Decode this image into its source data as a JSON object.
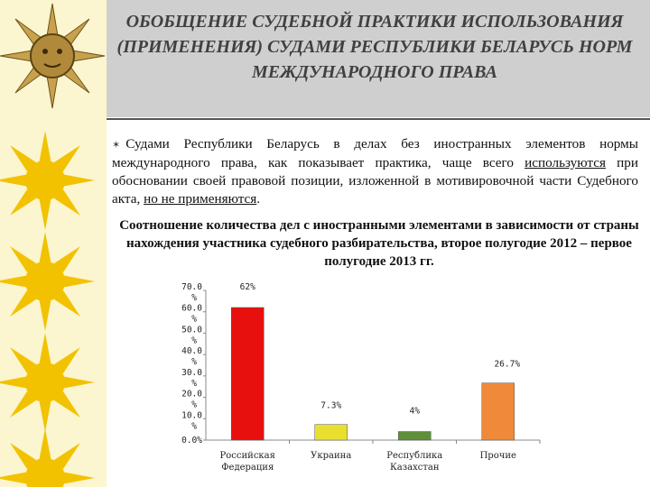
{
  "slide": {
    "title": "ОБОБЩЕНИЕ СУДЕБНОЙ ПРАКТИКИ ИСПОЛЬЗОВАНИЯ (ПРИМЕНЕНИЯ) СУДАМИ РЕСПУБЛИКИ БЕЛАРУСЬ НОРМ МЕЖДУНАРОДНОГО ПРАВА",
    "bullet": {
      "part1": "Судами Республики Беларусь в делах без иностранных элементов нормы международного права, как показывает практика, чаще всего ",
      "part2_u": "используются",
      "part3": " при обосновании своей правовой позиции, изложенной в мотивировочной части Судебного акта, ",
      "part4_u": "но не применяются",
      "part5": "."
    },
    "chart_heading": "Соотношение количества дел с иностранными элементами в зависимости от страны нахождения участника судебного разбирательства, второе полугодие 2012 – первое полугодие 2013 гг.",
    "colors": {
      "left_strip": "#fbf6cf",
      "title_band": "#cfcfcf",
      "sun": "#f2c200"
    }
  },
  "chart_data": {
    "type": "bar",
    "categories": [
      "Российская Федерация",
      "Украина",
      "Республика Казахстан",
      "Прочие"
    ],
    "values": [
      62.0,
      7.3,
      4.0,
      26.7
    ],
    "data_labels": [
      "62%",
      "7.3%",
      "4%",
      "26.7%"
    ],
    "bar_colors": [
      "#e8100e",
      "#e9df2f",
      "#5f8f3a",
      "#f08a3a"
    ],
    "ylim": [
      0,
      70
    ],
    "yticks": [
      0,
      10,
      20,
      30,
      40,
      50,
      60,
      70
    ],
    "ytick_labels": [
      "0.0%",
      "10.0%",
      "20.0%",
      "30.0%",
      "40.0%",
      "50.0%",
      "60.0%",
      "70.0%"
    ],
    "grid": false,
    "legend": "none"
  }
}
